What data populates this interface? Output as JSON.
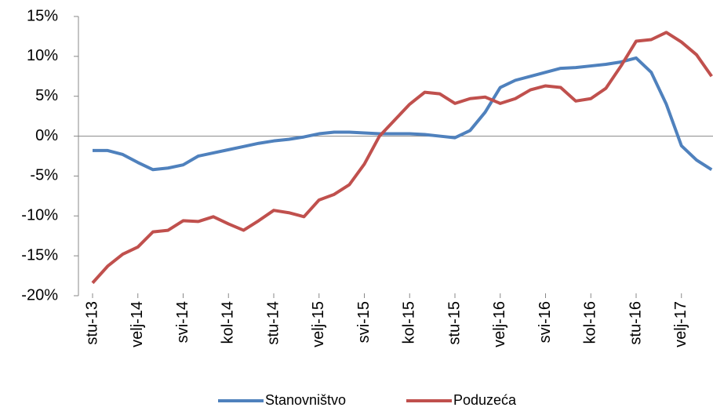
{
  "chart_data": {
    "type": "line",
    "categories": [
      "stu-13",
      null,
      null,
      "velj-14",
      null,
      null,
      "svi-14",
      null,
      null,
      "kol-14",
      null,
      null,
      "stu-14",
      null,
      null,
      "velj-15",
      null,
      null,
      "svi-15",
      null,
      null,
      "kol-15",
      null,
      null,
      "stu-15",
      null,
      null,
      "velj-16",
      null,
      null,
      "svi-16",
      null,
      null,
      "kol-16",
      null,
      null,
      "stu-16",
      null,
      null,
      "velj-17",
      null,
      null
    ],
    "series": [
      {
        "name": "Stanovništvo",
        "color": "#4f81bd",
        "values": [
          -1.8,
          -1.8,
          -2.3,
          -3.3,
          -4.2,
          -4.0,
          -3.6,
          -2.5,
          -2.1,
          -1.7,
          -1.3,
          -0.9,
          -0.6,
          -0.4,
          -0.1,
          0.3,
          0.5,
          0.5,
          0.4,
          0.3,
          0.3,
          0.3,
          0.2,
          0.0,
          -0.2,
          0.7,
          3.0,
          6.1,
          7.0,
          7.5,
          8.0,
          8.5,
          8.6,
          8.8,
          9.0,
          9.3,
          9.8,
          8.0,
          4.0,
          -1.2,
          -3.0,
          -4.2
        ]
      },
      {
        "name": "Poduzeća",
        "color": "#c0504d",
        "values": [
          -18.4,
          -16.3,
          -14.8,
          -13.9,
          -12.0,
          -11.8,
          -10.6,
          -10.7,
          -10.1,
          -11.0,
          -11.8,
          -10.6,
          -9.3,
          -9.6,
          -10.1,
          -8.0,
          -7.3,
          -6.1,
          -3.5,
          0.0,
          2.0,
          4.0,
          5.5,
          5.3,
          4.1,
          4.7,
          4.9,
          4.1,
          4.7,
          5.8,
          6.3,
          6.1,
          4.4,
          4.7,
          6.0,
          8.8,
          11.9,
          12.1,
          13.0,
          11.8,
          10.2,
          7.5
        ]
      }
    ],
    "ylim": [
      -20,
      15
    ],
    "yticks": [
      {
        "value": -20,
        "label": "-20%"
      },
      {
        "value": -15,
        "label": "-15%"
      },
      {
        "value": -10,
        "label": "-10%"
      },
      {
        "value": -5,
        "label": "-5%"
      },
      {
        "value": 0,
        "label": "0%"
      },
      {
        "value": 5,
        "label": "5%"
      },
      {
        "value": 10,
        "label": "10%"
      },
      {
        "value": 15,
        "label": "15%"
      }
    ],
    "legend": "bottom"
  }
}
